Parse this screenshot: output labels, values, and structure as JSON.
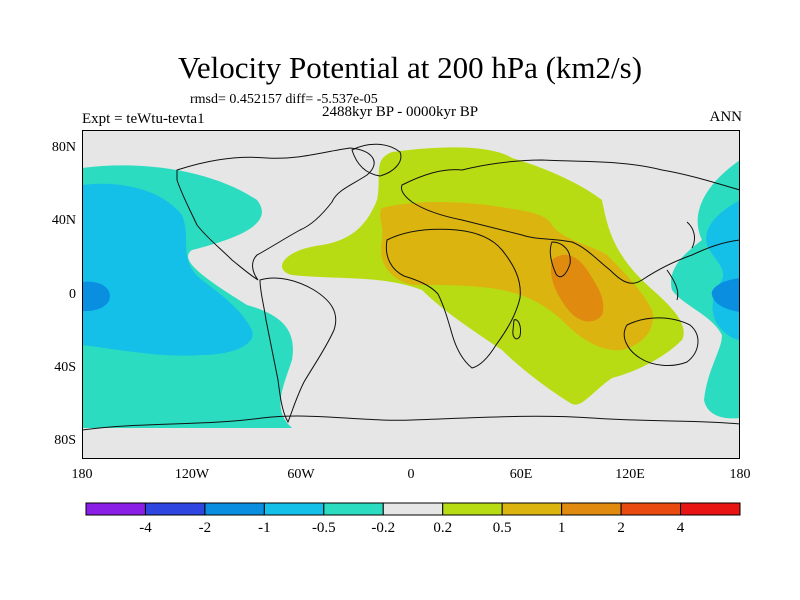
{
  "title": "Velocity Potential at 200 hPa (km2/s)",
  "stats": "rmsd= 0.452157 diff= -5.537e-05",
  "experiment": "Expt = teWtu-tevta1",
  "period": "2488kyr BP - 0000kyr BP",
  "season": "ANN",
  "lat_labels": [
    "80N",
    "40N",
    "0",
    "40S",
    "80S"
  ],
  "lon_labels": [
    "180",
    "120W",
    "60W",
    "0",
    "60E",
    "120E",
    "180"
  ],
  "colorbar": {
    "labels": [
      "-4",
      "-2",
      "-1",
      "-0.5",
      "-0.2",
      "0.2",
      "0.5",
      "1",
      "2",
      "4"
    ],
    "colors": [
      "#8a1ee6",
      "#2f45e0",
      "#0a8fe0",
      "#14c0e8",
      "#2cdcc0",
      "#e6e6e6",
      "#b8dc14",
      "#dcb410",
      "#e08a10",
      "#e84a10",
      "#e81414"
    ]
  },
  "chart_data": {
    "type": "map",
    "title": "Velocity Potential at 200 hPa (km2/s)",
    "lon_range": [
      -180,
      180
    ],
    "lat_range": [
      -90,
      90
    ],
    "levels": [
      -4,
      -2,
      -1,
      -0.5,
      -0.2,
      0.2,
      0.5,
      1,
      2,
      4
    ]
  }
}
